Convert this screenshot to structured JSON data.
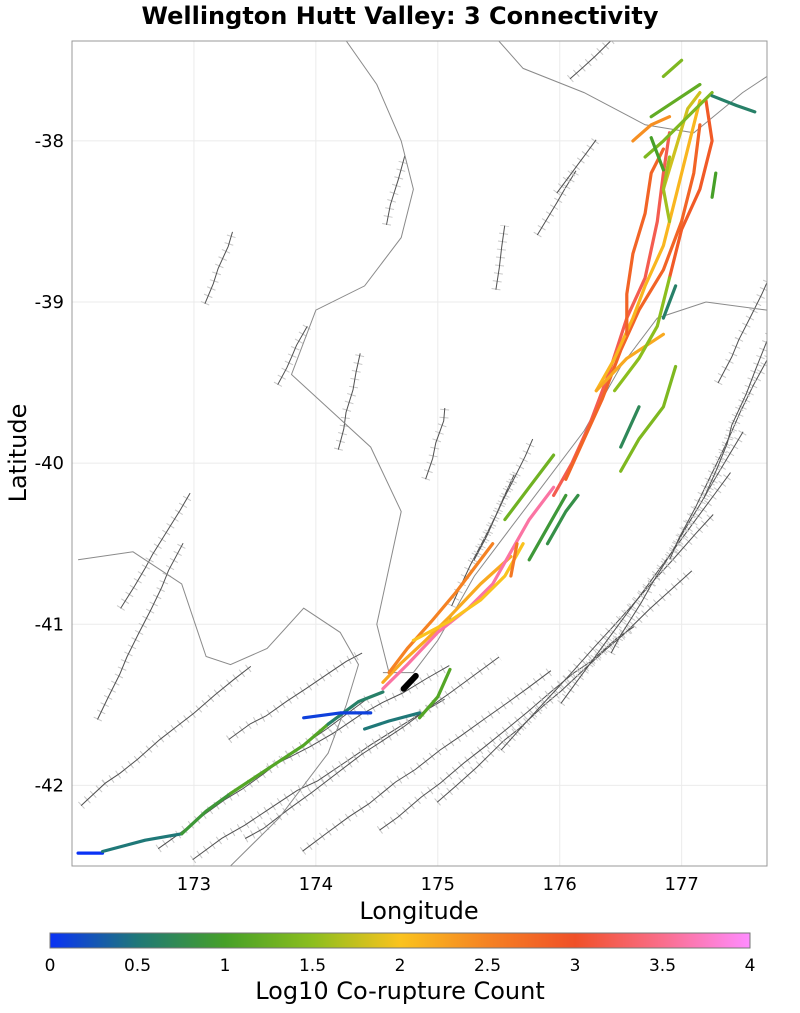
{
  "chart_data": {
    "type": "map",
    "title": "Wellington Hutt Valley: 3 Connectivity",
    "xlabel": "Longitude",
    "ylabel": "Latitude",
    "xlim": [
      172.0,
      177.7
    ],
    "ylim": [
      -42.5,
      -37.38
    ],
    "x_ticks": [
      173,
      174,
      175,
      176,
      177
    ],
    "y_ticks": [
      -38,
      -39,
      -40,
      -41,
      -42
    ],
    "grid": true,
    "colorbar": {
      "label": "Log10 Co-rupture Count",
      "range": [
        0,
        4
      ],
      "ticks": [
        0,
        0.5,
        1,
        1.5,
        2,
        2.5,
        3,
        3.5,
        4
      ],
      "tick_labels": [
        "0",
        "0.5",
        "1",
        "1.5",
        "2",
        "2.5",
        "3",
        "3.5",
        "4"
      ],
      "stops": [
        "#0a32f5",
        "#1f7878",
        "#46a028",
        "#8cbe1e",
        "#fac31e",
        "#f58223",
        "#f05028",
        "#fa6e8c",
        "#ff8cff"
      ]
    },
    "coastline": [
      [
        [
          174.55,
          -41.3
        ],
        [
          174.8,
          -41.3
        ],
        [
          175.0,
          -41.1
        ],
        [
          175.3,
          -40.7
        ],
        [
          175.6,
          -40.4
        ],
        [
          175.9,
          -40.1
        ],
        [
          176.2,
          -39.8
        ],
        [
          176.5,
          -39.4
        ],
        [
          176.8,
          -39.1
        ],
        [
          177.2,
          -39.0
        ],
        [
          177.7,
          -39.05
        ]
      ],
      [
        [
          174.6,
          -41.3
        ],
        [
          174.5,
          -41.0
        ],
        [
          174.7,
          -40.3
        ],
        [
          174.45,
          -39.9
        ],
        [
          173.8,
          -39.45
        ],
        [
          174.0,
          -39.05
        ],
        [
          174.4,
          -38.9
        ],
        [
          174.7,
          -38.6
        ],
        [
          174.8,
          -38.3
        ],
        [
          174.7,
          -38.0
        ],
        [
          174.5,
          -37.65
        ],
        [
          174.25,
          -37.38
        ]
      ],
      [
        [
          175.5,
          -37.38
        ],
        [
          175.7,
          -37.55
        ],
        [
          176.2,
          -37.7
        ],
        [
          176.7,
          -37.9
        ],
        [
          177.1,
          -37.95
        ],
        [
          177.5,
          -37.7
        ],
        [
          177.7,
          -37.6
        ]
      ],
      [
        [
          172.05,
          -40.6
        ],
        [
          172.5,
          -40.55
        ],
        [
          172.9,
          -40.75
        ],
        [
          173.1,
          -41.2
        ],
        [
          173.3,
          -41.25
        ],
        [
          173.6,
          -41.15
        ],
        [
          173.9,
          -40.9
        ],
        [
          174.2,
          -41.05
        ],
        [
          174.35,
          -41.25
        ],
        [
          174.25,
          -41.5
        ],
        [
          174.1,
          -41.8
        ],
        [
          173.7,
          -42.2
        ],
        [
          173.3,
          -42.5
        ]
      ]
    ],
    "sections": [
      {
        "points": [
          [
            172.05,
            -42.42
          ],
          [
            172.25,
            -42.42
          ]
        ],
        "value": 0.0
      },
      {
        "points": [
          [
            172.25,
            -42.41
          ],
          [
            172.6,
            -42.34
          ],
          [
            172.9,
            -42.3
          ]
        ],
        "value": 0.5
      },
      {
        "points": [
          [
            172.9,
            -42.3
          ],
          [
            173.1,
            -42.16
          ],
          [
            173.3,
            -42.05
          ]
        ],
        "value": 0.9
      },
      {
        "points": [
          [
            173.3,
            -42.05
          ],
          [
            173.6,
            -41.9
          ],
          [
            173.9,
            -41.75
          ],
          [
            174.1,
            -41.62
          ]
        ],
        "value": 1.1
      },
      {
        "points": [
          [
            174.1,
            -41.62
          ],
          [
            174.35,
            -41.48
          ],
          [
            174.55,
            -41.42
          ]
        ],
        "value": 0.6
      },
      {
        "points": [
          [
            173.9,
            -41.58
          ],
          [
            174.2,
            -41.55
          ],
          [
            174.45,
            -41.55
          ]
        ],
        "value": 0.1
      },
      {
        "points": [
          [
            174.4,
            -41.65
          ],
          [
            174.6,
            -41.6
          ],
          [
            174.85,
            -41.55
          ]
        ],
        "value": 0.5
      },
      {
        "points": [
          [
            174.85,
            -41.58
          ],
          [
            175.0,
            -41.45
          ],
          [
            175.1,
            -41.28
          ]
        ],
        "value": 1.1
      },
      {
        "points": [
          [
            174.55,
            -41.36
          ],
          [
            174.7,
            -41.24
          ],
          [
            174.9,
            -41.1
          ],
          [
            175.1,
            -40.95
          ],
          [
            175.35,
            -40.75
          ],
          [
            175.6,
            -40.58
          ]
        ],
        "value": 2.2
      },
      {
        "points": [
          [
            174.55,
            -41.4
          ],
          [
            174.75,
            -41.25
          ],
          [
            175.0,
            -41.05
          ],
          [
            175.25,
            -40.9
          ],
          [
            175.45,
            -40.75
          ],
          [
            175.6,
            -40.55
          ],
          [
            175.75,
            -40.35
          ],
          [
            175.95,
            -40.15
          ]
        ],
        "value": 3.6
      },
      {
        "points": [
          [
            174.6,
            -41.3
          ],
          [
            174.75,
            -41.15
          ],
          [
            174.95,
            -40.98
          ],
          [
            175.15,
            -40.8
          ],
          [
            175.3,
            -40.65
          ],
          [
            175.45,
            -40.5
          ]
        ],
        "value": 2.5
      },
      {
        "points": [
          [
            174.8,
            -41.1
          ],
          [
            175.1,
            -40.98
          ],
          [
            175.35,
            -40.85
          ],
          [
            175.55,
            -40.7
          ],
          [
            175.7,
            -40.5
          ]
        ],
        "value": 2.0
      },
      {
        "points": [
          [
            175.95,
            -40.2
          ],
          [
            176.1,
            -40.0
          ],
          [
            176.25,
            -39.75
          ],
          [
            176.4,
            -39.45
          ],
          [
            176.55,
            -39.1
          ],
          [
            176.7,
            -38.85
          ],
          [
            176.8,
            -38.5
          ],
          [
            176.85,
            -38.2
          ],
          [
            176.9,
            -37.95
          ]
        ],
        "value": 3.2
      },
      {
        "points": [
          [
            176.05,
            -40.1
          ],
          [
            176.2,
            -39.85
          ],
          [
            176.35,
            -39.6
          ],
          [
            176.5,
            -39.3
          ],
          [
            176.65,
            -39.05
          ],
          [
            176.85,
            -38.8
          ],
          [
            177.0,
            -38.5
          ],
          [
            177.1,
            -38.2
          ],
          [
            177.15,
            -37.9
          ]
        ],
        "value": 2.8
      },
      {
        "points": [
          [
            176.3,
            -39.55
          ],
          [
            176.45,
            -39.35
          ],
          [
            176.6,
            -39.1
          ],
          [
            176.7,
            -38.9
          ],
          [
            176.85,
            -38.65
          ],
          [
            176.95,
            -38.35
          ],
          [
            177.05,
            -38.05
          ],
          [
            177.15,
            -37.75
          ]
        ],
        "value": 2.1
      },
      {
        "points": [
          [
            176.55,
            -39.2
          ],
          [
            176.55,
            -38.95
          ],
          [
            176.6,
            -38.7
          ],
          [
            176.7,
            -38.45
          ],
          [
            176.75,
            -38.2
          ],
          [
            176.85,
            -38.05
          ]
        ],
        "value": 2.8
      },
      {
        "points": [
          [
            176.3,
            -39.55
          ],
          [
            176.55,
            -39.35
          ],
          [
            176.85,
            -39.2
          ]
        ],
        "value": 2.2
      },
      {
        "points": [
          [
            176.9,
            -38.85
          ],
          [
            177.0,
            -38.55
          ],
          [
            177.15,
            -38.3
          ],
          [
            177.25,
            -38.0
          ],
          [
            177.2,
            -37.75
          ]
        ],
        "value": 2.9
      },
      {
        "points": [
          [
            176.6,
            -38.0
          ],
          [
            176.75,
            -37.9
          ],
          [
            176.9,
            -37.85
          ]
        ],
        "value": 2.4
      },
      {
        "points": [
          [
            176.85,
            -38.3
          ],
          [
            176.95,
            -38.05
          ],
          [
            177.05,
            -37.8
          ],
          [
            177.15,
            -37.7
          ]
        ],
        "value": 1.8
      },
      {
        "points": [
          [
            176.7,
            -38.1
          ],
          [
            176.85,
            -38.0
          ],
          [
            177.05,
            -37.85
          ],
          [
            177.25,
            -37.7
          ]
        ],
        "value": 1.4
      },
      {
        "points": [
          [
            176.75,
            -37.98
          ],
          [
            176.85,
            -38.18
          ]
        ],
        "value": 1.0
      },
      {
        "points": [
          [
            177.25,
            -37.72
          ],
          [
            177.45,
            -37.78
          ],
          [
            177.6,
            -37.82
          ]
        ],
        "value": 0.6
      },
      {
        "points": [
          [
            176.75,
            -37.85
          ],
          [
            176.95,
            -37.75
          ],
          [
            177.15,
            -37.65
          ]
        ],
        "value": 1.2
      },
      {
        "points": [
          [
            176.85,
            -37.6
          ],
          [
            177.0,
            -37.5
          ]
        ],
        "value": 1.4
      },
      {
        "points": [
          [
            176.9,
            -38.5
          ],
          [
            176.85,
            -38.3
          ],
          [
            176.9,
            -38.1
          ]
        ],
        "value": 1.6
      },
      {
        "points": [
          [
            176.45,
            -39.55
          ],
          [
            176.65,
            -39.35
          ],
          [
            176.8,
            -39.15
          ],
          [
            176.9,
            -38.85
          ]
        ],
        "value": 1.5
      },
      {
        "points": [
          [
            176.5,
            -40.05
          ],
          [
            176.65,
            -39.85
          ],
          [
            176.85,
            -39.65
          ],
          [
            176.95,
            -39.4
          ]
        ],
        "value": 1.4
      },
      {
        "points": [
          [
            176.5,
            -39.9
          ],
          [
            176.65,
            -39.65
          ]
        ],
        "value": 0.7
      },
      {
        "points": [
          [
            176.85,
            -39.1
          ],
          [
            176.95,
            -38.9
          ]
        ],
        "value": 0.6
      },
      {
        "points": [
          [
            177.25,
            -38.35
          ],
          [
            177.28,
            -38.2
          ]
        ],
        "value": 1.0
      },
      {
        "points": [
          [
            175.75,
            -40.6
          ],
          [
            175.9,
            -40.4
          ],
          [
            176.05,
            -40.2
          ]
        ],
        "value": 0.9
      },
      {
        "points": [
          [
            175.9,
            -40.5
          ],
          [
            176.05,
            -40.3
          ],
          [
            176.15,
            -40.2
          ]
        ],
        "value": 0.8
      },
      {
        "points": [
          [
            175.55,
            -40.35
          ],
          [
            175.75,
            -40.15
          ],
          [
            175.95,
            -39.95
          ]
        ],
        "value": 1.3
      },
      {
        "points": [
          [
            175.6,
            -40.7
          ],
          [
            175.65,
            -40.5
          ]
        ],
        "value": 2.6
      },
      {
        "points": [
          [
            174.72,
            -41.4
          ],
          [
            174.82,
            -41.32
          ]
        ],
        "value": 4.5
      }
    ]
  }
}
